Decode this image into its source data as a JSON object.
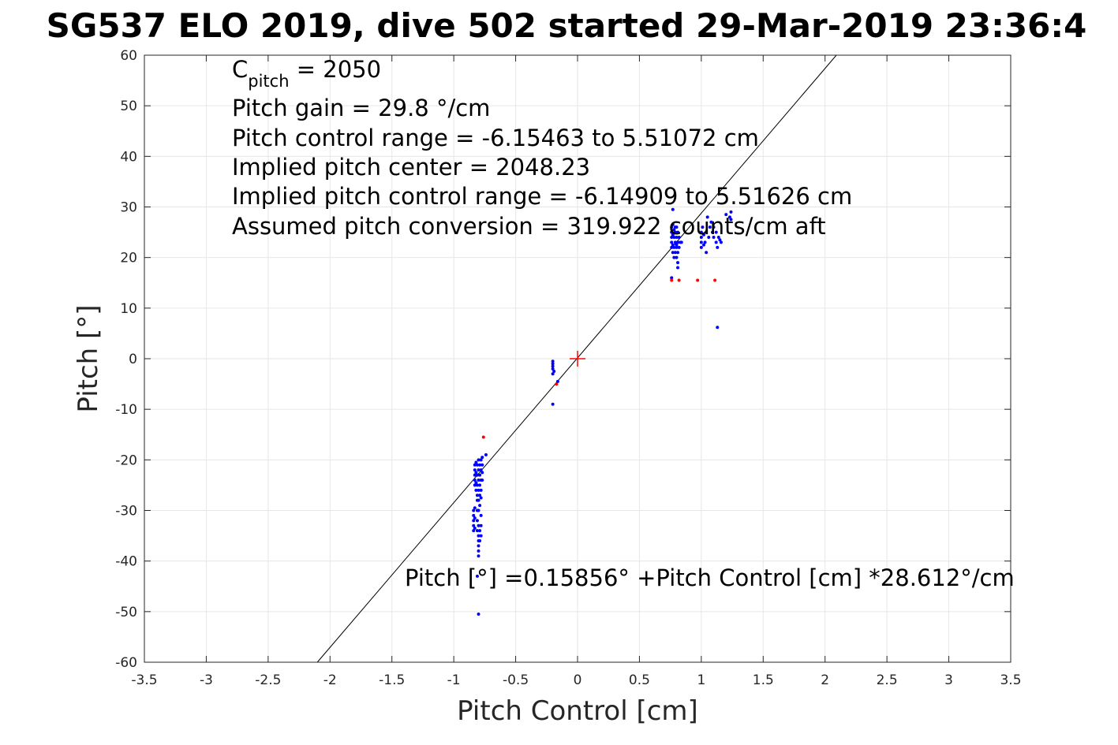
{
  "chart_data": {
    "type": "scatter",
    "title": "SG537 ELO 2019, dive 502 started 29-Mar-2019 23:36:4",
    "xlabel": "Pitch Control [cm]",
    "ylabel": "Pitch [°]",
    "xlim": [
      -3.5,
      3.5
    ],
    "ylim": [
      -60,
      60
    ],
    "grid": true,
    "x_ticks": [
      -3.5,
      -3,
      -2.5,
      -2,
      -1.5,
      -1,
      -0.5,
      0,
      0.5,
      1,
      1.5,
      2,
      2.5,
      3,
      3.5
    ],
    "x_tick_labels": [
      "-3.5",
      "-3",
      "-2.5",
      "-2",
      "-1.5",
      "-1",
      "-0.5",
      "0",
      "0.5",
      "1",
      "1.5",
      "2",
      "2.5",
      "3",
      "3.5"
    ],
    "y_ticks": [
      60,
      50,
      40,
      30,
      20,
      10,
      0,
      -10,
      -20,
      -30,
      -40,
      -50,
      -60
    ],
    "y_tick_labels": [
      "60",
      "50",
      "40",
      "30",
      "20",
      "10",
      "0",
      "-10",
      "-20",
      "-30",
      "-40",
      "-50",
      "-60"
    ],
    "annotations": {
      "c_pitch_main": "C",
      "c_pitch_sub": "pitch",
      "c_pitch_rest": " = 2050",
      "lines": [
        "Pitch gain = 29.8 °/cm",
        "Pitch control range = -6.15463 to 5.51072 cm",
        "Implied pitch center = 2048.23",
        "Implied pitch control range = -6.14909 to 5.51626 cm",
        "Assumed pitch conversion = 319.922 counts/cm aft"
      ],
      "fit_equation": "Pitch [°] =0.15856° +Pitch Control [cm] *28.612°/cm"
    },
    "fit_line": {
      "intercept": 0.15856,
      "slope": 28.612,
      "color": "#000000"
    },
    "center_marker": {
      "x": 0,
      "y": 0,
      "color": "#ff0000"
    },
    "series": [
      {
        "color": "#0000ff",
        "points": [
          [
            -0.83,
            -21
          ],
          [
            -0.83,
            -22
          ],
          [
            -0.83,
            -23
          ],
          [
            -0.83,
            -24
          ],
          [
            -0.83,
            -25
          ],
          [
            -0.82,
            -20.5
          ],
          [
            -0.82,
            -22.5
          ],
          [
            -0.82,
            -24.5
          ],
          [
            -0.82,
            -26
          ],
          [
            -0.81,
            -21
          ],
          [
            -0.81,
            -23
          ],
          [
            -0.81,
            -25
          ],
          [
            -0.81,
            -27
          ],
          [
            -0.81,
            -28
          ],
          [
            -0.8,
            -20
          ],
          [
            -0.8,
            -22
          ],
          [
            -0.8,
            -24
          ],
          [
            -0.8,
            -26
          ],
          [
            -0.8,
            -28
          ],
          [
            -0.8,
            -30
          ],
          [
            -0.79,
            -21
          ],
          [
            -0.79,
            -23
          ],
          [
            -0.79,
            -25
          ],
          [
            -0.79,
            -27
          ],
          [
            -0.79,
            -29
          ],
          [
            -0.78,
            -20
          ],
          [
            -0.78,
            -22
          ],
          [
            -0.78,
            -24
          ],
          [
            -0.78,
            -26
          ],
          [
            -0.78,
            -27.5
          ],
          [
            -0.77,
            -19.5
          ],
          [
            -0.77,
            -21
          ],
          [
            -0.77,
            -22.5
          ],
          [
            -0.77,
            -24
          ],
          [
            -0.84,
            -30
          ],
          [
            -0.84,
            -31
          ],
          [
            -0.84,
            -32
          ],
          [
            -0.84,
            -33
          ],
          [
            -0.84,
            -34
          ],
          [
            -0.83,
            -29.5
          ],
          [
            -0.83,
            -31.5
          ],
          [
            -0.83,
            -33.5
          ],
          [
            -0.81,
            -30
          ],
          [
            -0.81,
            -32
          ],
          [
            -0.81,
            -34
          ],
          [
            -0.8,
            -33
          ],
          [
            -0.8,
            -35
          ],
          [
            -0.8,
            -36
          ],
          [
            -0.8,
            -37
          ],
          [
            -0.8,
            -38
          ],
          [
            -0.8,
            -39
          ],
          [
            -0.79,
            -34
          ],
          [
            -0.79,
            -36
          ],
          [
            -0.78,
            -31
          ],
          [
            -0.78,
            -33
          ],
          [
            -0.78,
            -35
          ],
          [
            -0.81,
            -43
          ],
          [
            -0.8,
            -50.5
          ],
          [
            -0.74,
            -19
          ],
          [
            -0.2,
            -0.5
          ],
          [
            -0.2,
            -1
          ],
          [
            -0.2,
            -1.5
          ],
          [
            -0.2,
            -2
          ],
          [
            -0.2,
            -3
          ],
          [
            -0.19,
            -2.5
          ],
          [
            -0.2,
            -9
          ],
          [
            -0.16,
            -4.5
          ],
          [
            0.76,
            22
          ],
          [
            0.76,
            23
          ],
          [
            0.76,
            24
          ],
          [
            0.76,
            25
          ],
          [
            0.76,
            26
          ],
          [
            0.77,
            21
          ],
          [
            0.77,
            22.5
          ],
          [
            0.77,
            24.5
          ],
          [
            0.77,
            26.5
          ],
          [
            0.78,
            20
          ],
          [
            0.78,
            22
          ],
          [
            0.78,
            24
          ],
          [
            0.78,
            25.5
          ],
          [
            0.79,
            21
          ],
          [
            0.79,
            23
          ],
          [
            0.79,
            25
          ],
          [
            0.79,
            26
          ],
          [
            0.8,
            20
          ],
          [
            0.8,
            22
          ],
          [
            0.8,
            24
          ],
          [
            0.8,
            26
          ],
          [
            0.8,
            22.5
          ],
          [
            0.81,
            21
          ],
          [
            0.81,
            23
          ],
          [
            0.81,
            25
          ],
          [
            0.81,
            19
          ],
          [
            0.81,
            18
          ],
          [
            0.82,
            22
          ],
          [
            0.82,
            24
          ],
          [
            0.83,
            23
          ],
          [
            0.84,
            23
          ],
          [
            0.77,
            29.5
          ],
          [
            0.76,
            16
          ],
          [
            1.0,
            22
          ],
          [
            1.0,
            23
          ],
          [
            1.0,
            24
          ],
          [
            1.0,
            25
          ],
          [
            1.01,
            26
          ],
          [
            1.02,
            22.5
          ],
          [
            1.02,
            24.5
          ],
          [
            1.03,
            23
          ],
          [
            1.04,
            21
          ],
          [
            1.04,
            25
          ],
          [
            1.05,
            28
          ],
          [
            1.06,
            24
          ],
          [
            1.07,
            26
          ],
          [
            1.08,
            27
          ],
          [
            1.09,
            25
          ],
          [
            1.1,
            24
          ],
          [
            1.1,
            26
          ],
          [
            1.12,
            25
          ],
          [
            1.12,
            23
          ],
          [
            1.13,
            22
          ],
          [
            1.14,
            24
          ],
          [
            1.15,
            23.5
          ],
          [
            1.16,
            23
          ],
          [
            1.2,
            28.5
          ],
          [
            1.23,
            28
          ],
          [
            1.24,
            29
          ],
          [
            1.24,
            27.5
          ],
          [
            1.13,
            6.2
          ]
        ]
      },
      {
        "color": "#ff0000",
        "points": [
          [
            -0.76,
            -15.5
          ],
          [
            -0.17,
            -5
          ],
          [
            0.76,
            15.5
          ],
          [
            0.82,
            15.5
          ],
          [
            0.97,
            15.5
          ],
          [
            1.11,
            15.5
          ]
        ]
      }
    ]
  }
}
